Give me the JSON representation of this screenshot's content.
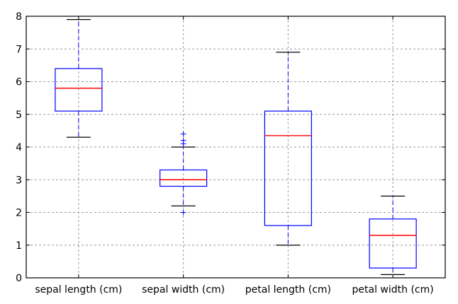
{
  "chart_data": {
    "type": "box",
    "title": "",
    "xlabel": "",
    "ylabel": "",
    "ylim": [
      0,
      8
    ],
    "yticks": [
      "0",
      "1",
      "2",
      "3",
      "4",
      "5",
      "6",
      "7",
      "8"
    ],
    "grid": true,
    "categories": [
      "sepal length (cm)",
      "sepal width (cm)",
      "petal length (cm)",
      "petal width (cm)"
    ],
    "boxes": [
      {
        "whisker_low": 4.3,
        "q1": 5.1,
        "median": 5.8,
        "q3": 6.4,
        "whisker_high": 7.9,
        "outliers": []
      },
      {
        "whisker_low": 2.2,
        "q1": 2.8,
        "median": 3.0,
        "q3": 3.3,
        "whisker_high": 4.0,
        "outliers": [
          4.1,
          4.2,
          4.4,
          2.0
        ]
      },
      {
        "whisker_low": 1.0,
        "q1": 1.6,
        "median": 4.35,
        "q3": 5.1,
        "whisker_high": 6.9,
        "outliers": []
      },
      {
        "whisker_low": 0.1,
        "q1": 0.3,
        "median": 1.3,
        "q3": 1.8,
        "whisker_high": 2.5,
        "outliers": []
      }
    ],
    "colors": {
      "box": "#0000ff",
      "median": "#ff0000",
      "whisker": "#0000ff",
      "cap": "#000000",
      "flier": "#0000ff",
      "grid": "#9a9a9a",
      "axis": "#000000"
    }
  }
}
